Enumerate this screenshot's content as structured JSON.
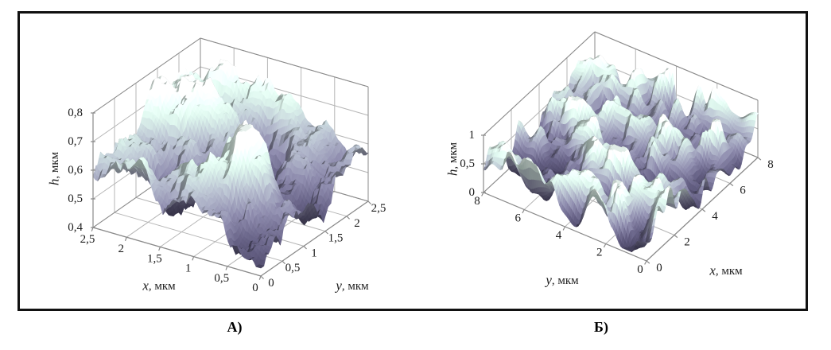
{
  "figure": {
    "caption_left": "А)",
    "caption_right": "Б)",
    "frame_color": "#111111",
    "background": "#ffffff"
  },
  "chart_data": [
    {
      "type": "surface3d",
      "panel": "А)",
      "title": "",
      "grid": true,
      "legend": false,
      "xlabel": "x, мкм",
      "ylabel": "y, мкм",
      "zlabel": "h, мкм",
      "x_range": [
        0,
        2.5
      ],
      "y_range": [
        0,
        2.5
      ],
      "z_range": [
        0.4,
        0.8
      ],
      "axes": {
        "u_edge": {
          "label": "x, мкм",
          "ticks": [
            "2,5",
            "2",
            "1,5",
            "1",
            "0,5",
            "0"
          ]
        },
        "v_edge": {
          "label": "y, мкм",
          "ticks": [
            "0",
            "0,5",
            "1",
            "1,5",
            "2",
            "2,5"
          ]
        },
        "z_axis": {
          "label": "h, мкм",
          "ticks": [
            "0,4",
            "0,5",
            "0,6",
            "0,7",
            "0,8"
          ]
        }
      },
      "surface": {
        "kind": "rough_terrain",
        "seed": 11,
        "grid": 72,
        "description": "irregular rough relief, h ≈ 0,45–0,78 мкм; broad pale ridge at back-centre, deep dark pit right of centre, lower dark area at front-left"
      },
      "colors": {
        "colormap": [
          "#3c3852",
          "#565270",
          "#787692",
          "#9aa0ae",
          "#b9cdc6",
          "#d7e7e0",
          "#edf4f1"
        ],
        "grid_line": "#b5b5b5",
        "axis_line": "#8a8a8a",
        "ink": "#1c1c1c"
      }
    },
    {
      "type": "surface3d",
      "panel": "Б)",
      "title": "",
      "grid": true,
      "legend": false,
      "xlabel": "x, мкм",
      "ylabel": "y, мкм",
      "zlabel": "h, мкм",
      "x_range": [
        0,
        8
      ],
      "y_range": [
        0,
        8
      ],
      "z_range": [
        0,
        1
      ],
      "axes": {
        "u_edge": {
          "label": "y, мкм",
          "ticks": [
            "8",
            "6",
            "4",
            "2",
            "0"
          ]
        },
        "v_edge": {
          "label": "x, мкм",
          "ticks": [
            "0",
            "2",
            "4",
            "6",
            "8"
          ]
        },
        "z_axis": {
          "label": "h, мкм",
          "ticks": [
            "0",
            "0,5",
            "1"
          ]
        }
      },
      "surface": {
        "kind": "periodic_bumps",
        "seed": 5,
        "grid": 88,
        "description": "dense array of similar-sized hillocks, h ≈ 0,1–0,95 мкм, covering the whole 8×8 мкм field"
      },
      "colors": {
        "colormap": [
          "#3c3852",
          "#565270",
          "#787692",
          "#9aa0ae",
          "#b9cdc6",
          "#d7e7e0",
          "#edf4f1"
        ],
        "grid_line": "#b5b5b5",
        "axis_line": "#8a8a8a",
        "ink": "#1c1c1c"
      }
    }
  ]
}
